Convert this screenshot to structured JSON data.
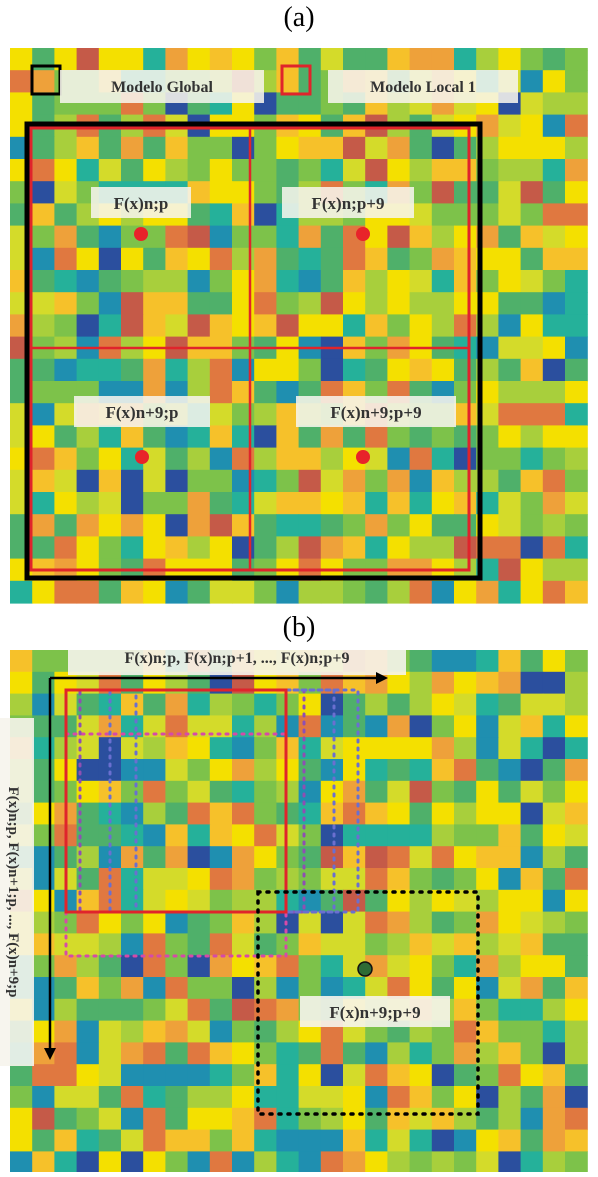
{
  "panel_a": {
    "label": "(a)",
    "legend_global": "Modelo Global",
    "legend_local": "Modelo Local 1",
    "quadrant_labels": [
      "F(x)n;p",
      "F(x)n;p+9",
      "F(x)n+9;p",
      "F(x)n+9;p+9"
    ]
  },
  "panel_b": {
    "label": "(b)",
    "horizontal_sequence": "F(x)n;p,  F(x)n;p+1, ..., F(x)n;p+9",
    "vertical_sequence": "F(x)n;p,  F(x)n+1;p, ..., F(x)n+9;p",
    "target_label": "F(x)n+9;p+9"
  },
  "colors": {
    "palette": [
      "#2b4f9e",
      "#1f8fb0",
      "#25b19a",
      "#4fb06a",
      "#7dc24a",
      "#a8cf3c",
      "#d4db2a",
      "#f4e000",
      "#f6c12a",
      "#eea13a",
      "#e07840",
      "#c55a48"
    ],
    "local_model": "#e0242b",
    "global_model": "#000000",
    "dot_red": "#e8232a",
    "dot_green": "#2e6b35",
    "purple_dotted": "#8e4fb3",
    "pink_dotted": "#d64aa8",
    "blue_dotted": "#6a6fd0"
  }
}
